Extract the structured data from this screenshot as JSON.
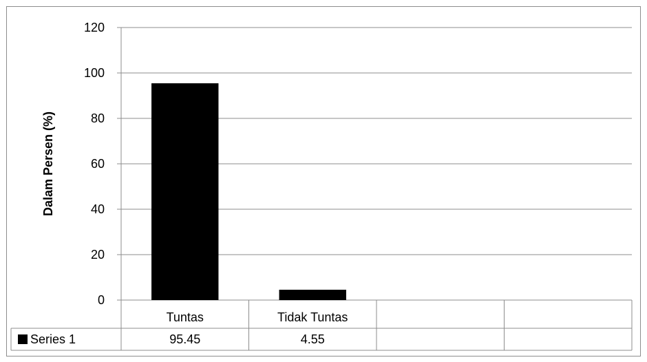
{
  "chart_data": {
    "type": "bar",
    "title": "",
    "xlabel": "",
    "ylabel": "Dalam Persen (%)",
    "ylim": [
      0,
      120
    ],
    "yticks": [
      "0",
      "20",
      "40",
      "60",
      "80",
      "100",
      "120"
    ],
    "grid": true,
    "legend": "in data table",
    "categories": [
      "Tuntas",
      "Tidak Tuntas",
      "",
      ""
    ],
    "series": [
      {
        "name": "Series 1",
        "values": [
          95.45,
          4.55,
          null,
          null
        ],
        "labels": [
          "95.45",
          "4.55",
          "",
          ""
        ],
        "color": "#000000"
      }
    ],
    "data_table": true
  }
}
